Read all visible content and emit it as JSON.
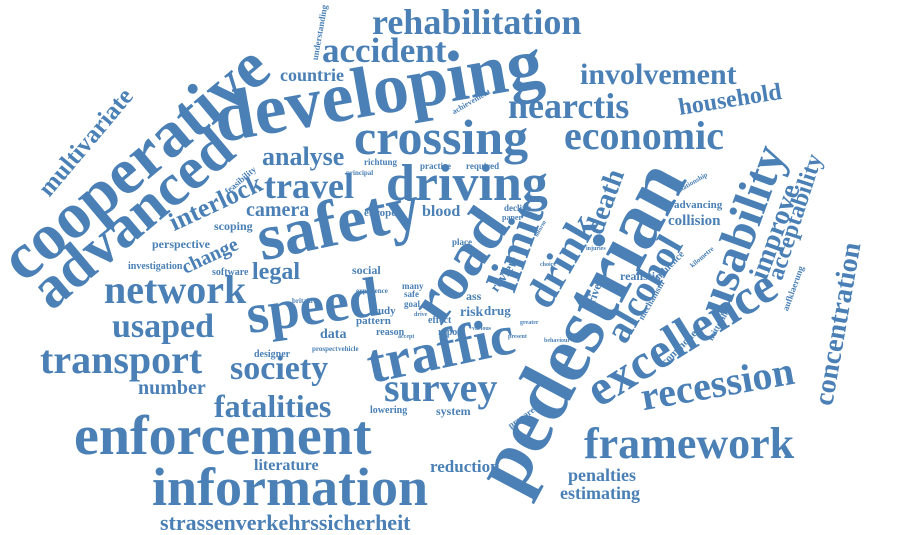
{
  "word_color": "#4a80b5",
  "background": "#ffffff",
  "words": [
    "rehabilitation",
    "accident",
    "developing",
    "involvement",
    "countrie",
    "nearctis",
    "household",
    "cooperative",
    "advanced",
    "crossing",
    "economic",
    "multivariate",
    "analyse",
    "driving",
    "travel",
    "safety",
    "pedestrian",
    "usability",
    "interlock",
    "camera",
    "death",
    "limit",
    "road",
    "drink",
    "improve",
    "acceptability",
    "network",
    "speed",
    "legal",
    "alcohol",
    "concentration",
    "usaped",
    "transport",
    "traffic",
    "excellence",
    "society",
    "recession",
    "survey",
    "number",
    "fatalities",
    "enforcement",
    "framework",
    "information",
    "literature",
    "reduction",
    "penalties",
    "estimating",
    "strassenverkehrssicherheit",
    "blood",
    "change",
    "perspective",
    "scoping",
    "investigation",
    "software",
    "europe",
    "social",
    "risk",
    "drug",
    "review",
    "data",
    "study",
    "pattern",
    "reason",
    "designer",
    "prospect",
    "vehicle",
    "lowering",
    "system",
    "prepared",
    "effect",
    "report",
    "collision",
    "advancing",
    "influence",
    "mechanism",
    "realistic",
    "driver",
    "commonest",
    "mittelalter",
    "aufklaerung",
    "relationship",
    "kilometre",
    "injuries",
    "achievement",
    "understanding",
    "richtung",
    "practice",
    "required",
    "principal",
    "decline",
    "paper",
    "experience",
    "safe",
    "goal",
    "many",
    "ass",
    "place",
    "feasibility",
    "britain",
    "behaviour",
    "greater",
    "present",
    "various",
    "accept",
    "inform",
    "choice",
    "drive"
  ]
}
